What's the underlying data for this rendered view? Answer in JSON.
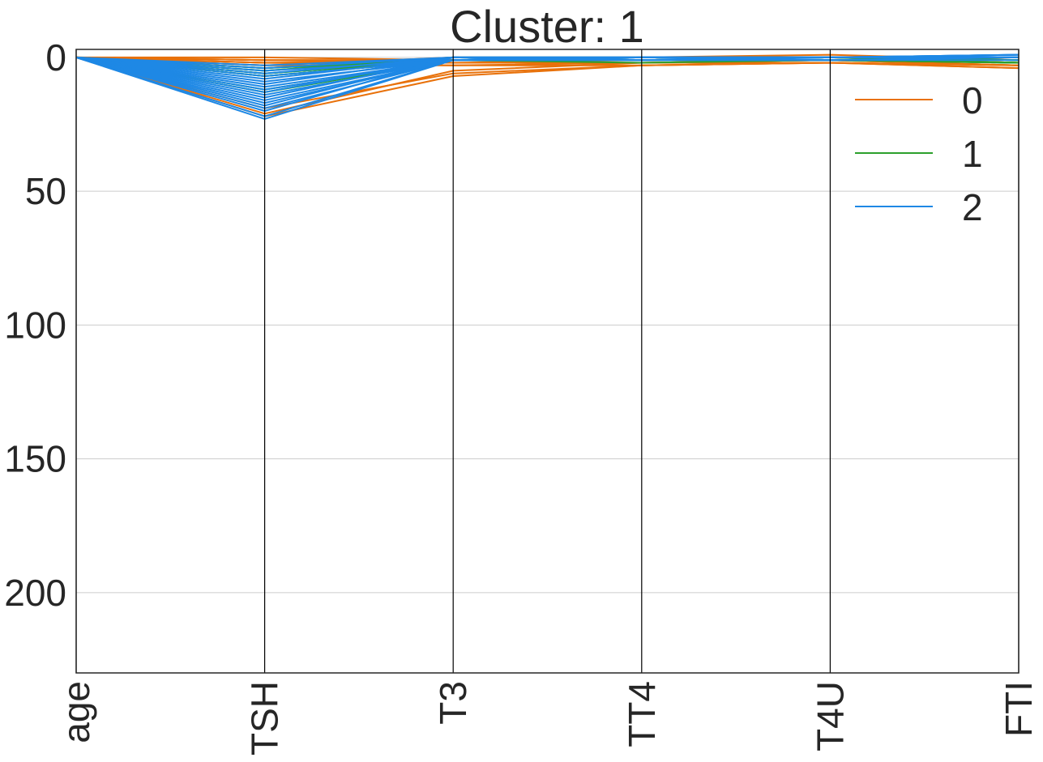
{
  "chart_data": {
    "type": "parallel-coordinates",
    "title": "Cluster: 1",
    "xlabel": "",
    "ylabel": "",
    "categories": [
      "age",
      "TSH",
      "T3",
      "TT4",
      "T4U",
      "FTI"
    ],
    "y_ticks": [
      0,
      50,
      100,
      150,
      200
    ],
    "ylim": [
      230,
      -3
    ],
    "y_inverted": true,
    "grid": "horizontal",
    "legend_position": "top-right",
    "legend": [
      "0",
      "1",
      "2"
    ],
    "colors": {
      "0": "#e8710a",
      "1": "#2ca02c",
      "2": "#1e88e5",
      "axis": "#000000",
      "grid": "#cccccc"
    },
    "series": [
      {
        "name": "0",
        "color": "#e8710a",
        "lines": [
          [
            0,
            21,
            5,
            2,
            1,
            3
          ],
          [
            0,
            19,
            6,
            3,
            2,
            3
          ],
          [
            0,
            22,
            7,
            3,
            2,
            4
          ],
          [
            0,
            2,
            1,
            1,
            0,
            2
          ],
          [
            0,
            3,
            3,
            2,
            2,
            3
          ],
          [
            0,
            1,
            1,
            1,
            0,
            2
          ],
          [
            0,
            2,
            2,
            2,
            1,
            3
          ],
          [
            0,
            3,
            0,
            0,
            -1,
            1
          ],
          [
            0,
            0,
            1,
            2,
            1,
            2
          ],
          [
            0,
            1,
            2,
            1,
            0,
            2
          ],
          [
            0,
            2,
            3,
            3,
            2,
            4
          ],
          [
            0,
            1,
            1,
            1,
            1,
            3
          ]
        ]
      },
      {
        "name": "1",
        "color": "#2ca02c",
        "lines": [
          [
            0,
            4,
            1,
            1,
            0,
            1
          ],
          [
            0,
            5,
            0,
            1,
            1,
            2
          ],
          [
            0,
            6,
            1,
            1,
            0,
            1
          ],
          [
            0,
            7,
            1,
            2,
            1,
            2
          ],
          [
            0,
            5,
            0,
            1,
            0,
            1
          ],
          [
            0,
            6,
            1,
            1,
            1,
            2
          ],
          [
            0,
            12,
            1,
            1,
            0,
            1
          ],
          [
            0,
            13,
            1,
            1,
            1,
            2
          ],
          [
            0,
            4,
            0,
            0,
            0,
            1
          ],
          [
            0,
            7,
            1,
            1,
            0,
            2
          ]
        ]
      },
      {
        "name": "2",
        "color": "#1e88e5",
        "lines": [
          [
            0,
            23,
            1,
            0,
            0,
            0
          ],
          [
            0,
            22,
            1,
            0,
            0,
            0
          ],
          [
            0,
            20,
            0,
            1,
            1,
            1
          ],
          [
            0,
            19,
            1,
            0,
            0,
            0
          ],
          [
            0,
            18,
            0,
            1,
            0,
            -1
          ],
          [
            0,
            17,
            1,
            0,
            0,
            0
          ],
          [
            0,
            16,
            1,
            1,
            1,
            0
          ],
          [
            0,
            15,
            0,
            0,
            0,
            -1
          ],
          [
            0,
            14,
            1,
            0,
            0,
            0
          ],
          [
            0,
            13,
            0,
            1,
            0,
            0
          ],
          [
            0,
            12,
            1,
            0,
            0,
            0
          ],
          [
            0,
            11,
            1,
            1,
            0,
            0
          ],
          [
            0,
            10,
            0,
            0,
            0,
            -1
          ],
          [
            0,
            9,
            1,
            0,
            1,
            0
          ],
          [
            0,
            8,
            0,
            1,
            0,
            0
          ],
          [
            0,
            7,
            1,
            0,
            0,
            0
          ],
          [
            0,
            6,
            0,
            0,
            0,
            -1
          ],
          [
            0,
            5,
            1,
            1,
            0,
            0
          ],
          [
            0,
            4,
            0,
            0,
            0,
            0
          ],
          [
            0,
            3,
            0,
            0,
            0,
            0
          ]
        ]
      }
    ]
  }
}
